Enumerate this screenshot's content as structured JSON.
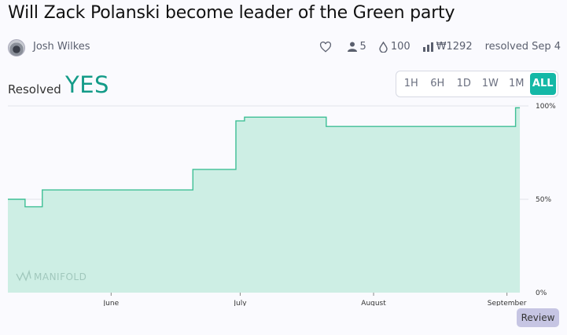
{
  "market": {
    "title": "Will Zack Polanski become leader of the Green party",
    "author": "Josh Wilkes",
    "traders": "5",
    "liquidity": "100",
    "volume": "₩1292",
    "resolved_date": "resolved Sep 4"
  },
  "resolution": {
    "label": "Resolved",
    "value": "YES"
  },
  "time_range": {
    "options": [
      "1H",
      "6H",
      "1D",
      "1W",
      "1M",
      "ALL"
    ],
    "selected": "ALL"
  },
  "review_label": "Review",
  "watermark": "MANIFOLD",
  "colors": {
    "accent": "#14b8a6",
    "yes": "#139b88",
    "area_fill": "#cdeee4",
    "line": "#3ebf95"
  },
  "chart_data": {
    "type": "area",
    "x_tick_labels": [
      "June",
      "July",
      "August",
      "September"
    ],
    "y_tick_labels": [
      "100%",
      "50%",
      "0%"
    ],
    "ylim": [
      0,
      1
    ],
    "step": true,
    "points": [
      {
        "x": "2025-05-08",
        "y": 0.5
      },
      {
        "x": "2025-05-12",
        "y": 0.46
      },
      {
        "x": "2025-05-16",
        "y": 0.55
      },
      {
        "x": "2025-06-20",
        "y": 0.66
      },
      {
        "x": "2025-06-30",
        "y": 0.92
      },
      {
        "x": "2025-07-02",
        "y": 0.94
      },
      {
        "x": "2025-07-21",
        "y": 0.89
      },
      {
        "x": "2025-09-03",
        "y": 0.99
      },
      {
        "x": "2025-09-04",
        "y": 0.99
      }
    ]
  }
}
